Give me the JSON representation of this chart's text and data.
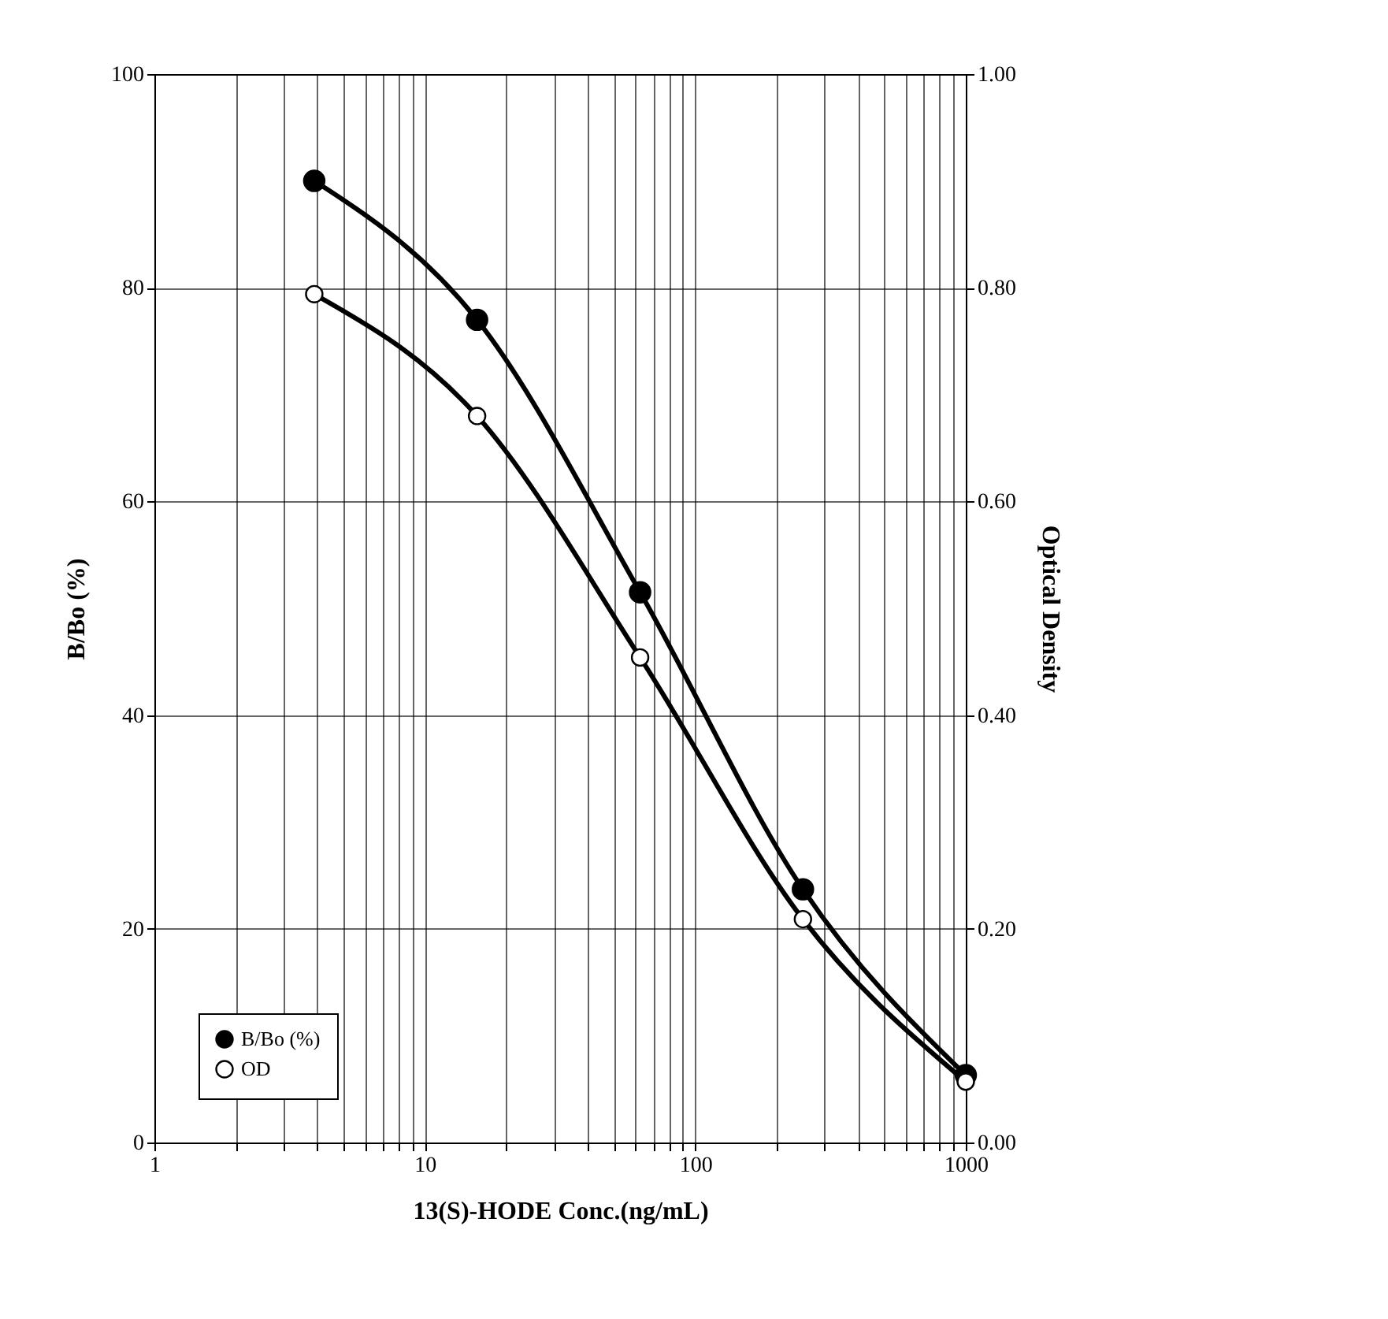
{
  "chart_data": {
    "type": "line",
    "xlabel": "13(S)-HODE Conc.(ng/mL)",
    "ylabel": "B/Bo (%)",
    "y2label": "Optical Density",
    "x": [
      3.9,
      15.6,
      62.5,
      250,
      1000
    ],
    "series": [
      {
        "name": "B/Bo (%)",
        "color": "#000000",
        "values": [
          90,
          77,
          51.5,
          23.7,
          6.3
        ]
      },
      {
        "name": "OD",
        "color": "#ffffff",
        "axis": "y2",
        "values": [
          0.794,
          0.68,
          0.454,
          0.209,
          0.057
        ]
      }
    ],
    "log": "x",
    "xlim": [
      1,
      1000
    ],
    "xticks": [
      1,
      {
        "value": 2,
        "label": null
      },
      {
        "value": 3,
        "label": null
      },
      {
        "value": 4,
        "label": null
      },
      {
        "value": 5,
        "label": null
      },
      {
        "value": 6,
        "label": null
      },
      {
        "value": 7,
        "label": null
      },
      {
        "value": 8,
        "label": null
      },
      {
        "value": 9,
        "label": null
      },
      10,
      {
        "value": 20,
        "label": null
      },
      {
        "value": 30,
        "label": null
      },
      {
        "value": 40,
        "label": null
      },
      {
        "value": 50,
        "label": null
      },
      {
        "value": 60,
        "label": null
      },
      {
        "value": 70,
        "label": null
      },
      {
        "value": 80,
        "label": null
      },
      {
        "value": 90,
        "label": null
      },
      100,
      {
        "value": 200,
        "label": null
      },
      {
        "value": 300,
        "label": null
      },
      {
        "value": 400,
        "label": null
      },
      {
        "value": 500,
        "label": null
      },
      {
        "value": 600,
        "label": null
      },
      {
        "value": 700,
        "label": null
      },
      {
        "value": 800,
        "label": null
      },
      {
        "value": 900,
        "label": null
      },
      1000
    ],
    "ylim": [
      0,
      100
    ],
    "yticks": [
      0,
      20,
      40,
      60,
      80,
      100
    ],
    "y2lim": [
      0,
      1
    ],
    "y2ticks": [
      {
        "value": 0,
        "label": "0.00"
      },
      {
        "value": 0.2,
        "label": "0.20"
      },
      {
        "value": 0.4,
        "label": "0.40"
      },
      {
        "value": 0.6,
        "label": "0.60"
      },
      {
        "value": 0.8,
        "label": "0.80"
      },
      {
        "value": 1,
        "label": "1.00"
      }
    ],
    "grid": true,
    "legend": "bottom left",
    "marker": "circle",
    "line_style": "solid"
  }
}
